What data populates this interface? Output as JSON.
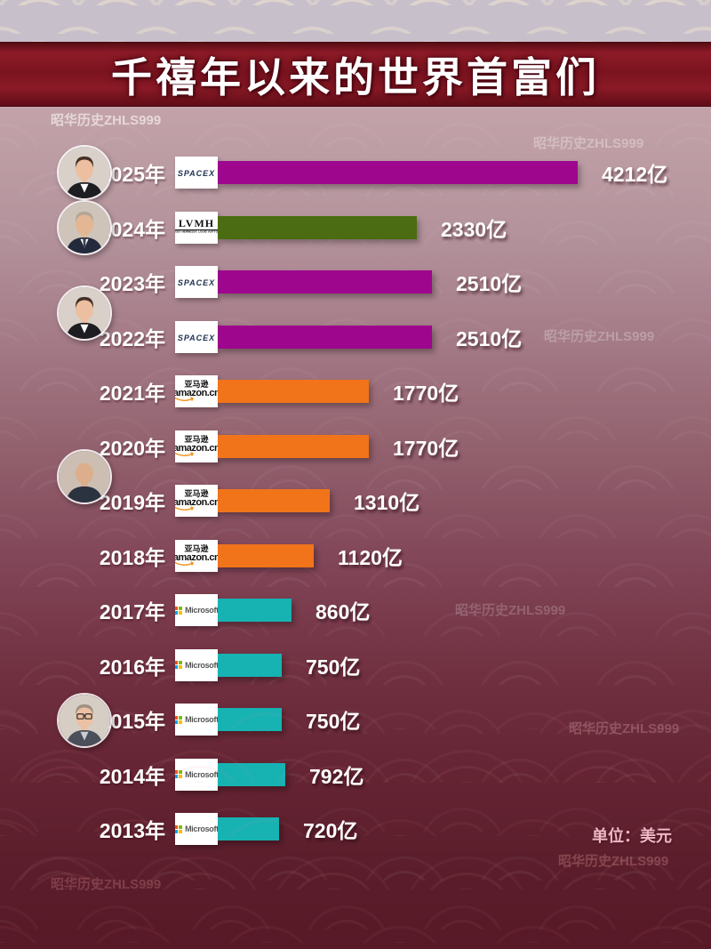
{
  "page": {
    "title": "千禧年以来的世界首富们",
    "unit_label": "单位：美元",
    "watermark": "昭华历史ZHLS999"
  },
  "chart_data": {
    "type": "bar",
    "orientation": "horizontal",
    "title": "千禧年以来的世界首富们",
    "unit": "美元",
    "value_suffix": "亿",
    "xlim": [
      0,
      4400
    ],
    "max_value": 4212,
    "categories": [
      "2025年",
      "2024年",
      "2023年",
      "2022年",
      "2021年",
      "2020年",
      "2019年",
      "2018年",
      "2017年",
      "2016年",
      "2015年",
      "2014年",
      "2013年"
    ],
    "values": [
      4212,
      2330,
      2510,
      2510,
      1770,
      1770,
      1310,
      1120,
      860,
      750,
      750,
      792,
      720
    ],
    "rows": [
      {
        "year": "2025年",
        "value": 4212,
        "value_label": "4212亿",
        "company": "spacex",
        "bar_color": "#9e068e"
      },
      {
        "year": "2024年",
        "value": 2330,
        "value_label": "2330亿",
        "company": "lvmh",
        "bar_color": "#4b6c12"
      },
      {
        "year": "2023年",
        "value": 2510,
        "value_label": "2510亿",
        "company": "spacex",
        "bar_color": "#9e068e"
      },
      {
        "year": "2022年",
        "value": 2510,
        "value_label": "2510亿",
        "company": "spacex",
        "bar_color": "#9e068e"
      },
      {
        "year": "2021年",
        "value": 1770,
        "value_label": "1770亿",
        "company": "amazon",
        "bar_color": "#f1741a"
      },
      {
        "year": "2020年",
        "value": 1770,
        "value_label": "1770亿",
        "company": "amazon",
        "bar_color": "#f1741a"
      },
      {
        "year": "2019年",
        "value": 1310,
        "value_label": "1310亿",
        "company": "amazon",
        "bar_color": "#f1741a"
      },
      {
        "year": "2018年",
        "value": 1120,
        "value_label": "1120亿",
        "company": "amazon",
        "bar_color": "#f1741a"
      },
      {
        "year": "2017年",
        "value": 860,
        "value_label": "860亿",
        "company": "microsoft",
        "bar_color": "#17b2b2"
      },
      {
        "year": "2016年",
        "value": 750,
        "value_label": "750亿",
        "company": "microsoft",
        "bar_color": "#17b2b2"
      },
      {
        "year": "2015年",
        "value": 750,
        "value_label": "750亿",
        "company": "microsoft",
        "bar_color": "#17b2b2"
      },
      {
        "year": "2014年",
        "value": 792,
        "value_label": "792亿",
        "company": "microsoft",
        "bar_color": "#17b2b2"
      },
      {
        "year": "2013年",
        "value": 720,
        "value_label": "720亿",
        "company": "microsoft",
        "bar_color": "#17b2b2"
      }
    ]
  },
  "logos": {
    "spacex": {
      "text": "SPACEX",
      "color": "#1d3050"
    },
    "lvmh": {
      "text": "LVMH",
      "subtext": "MOËT HENNESSY. LOUIS VUITTON"
    },
    "amazon": {
      "text_cn": "亚马逊",
      "text_en": "amazon.cn",
      "smile_color": "#f49017"
    },
    "microsoft": {
      "text": "Microsoft",
      "square_colors": [
        "#f25022",
        "#7fba00",
        "#00a4ef",
        "#ffb900"
      ]
    }
  },
  "avatars": [
    {
      "person": "elon-musk"
    },
    {
      "person": "bernard-arnault"
    },
    {
      "person": "elon-musk"
    },
    {
      "person": "jeff-bezos"
    },
    {
      "person": "bill-gates"
    }
  ]
}
